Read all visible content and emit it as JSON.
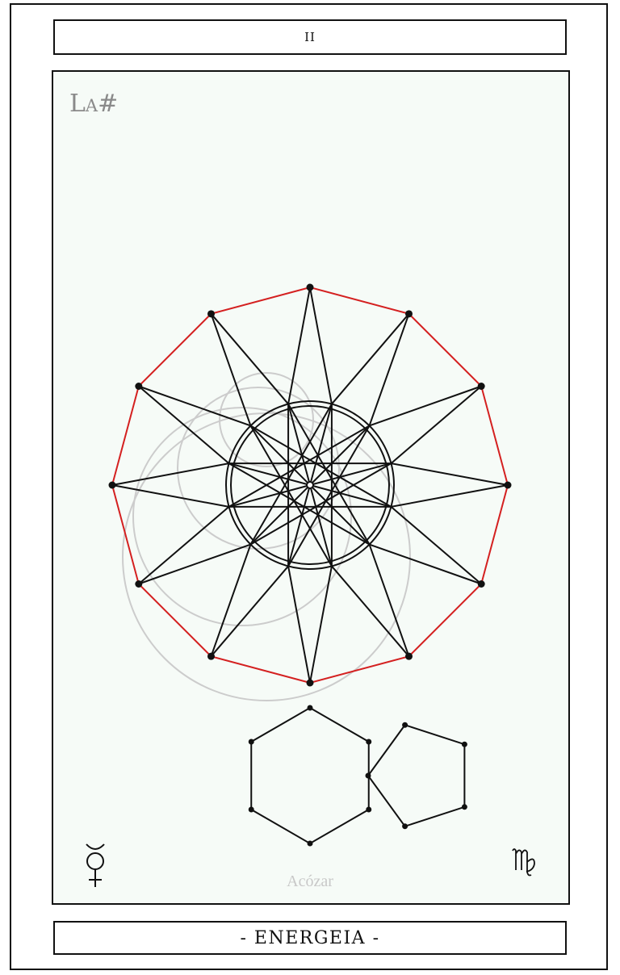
{
  "card": {
    "number": "II",
    "note": "La#",
    "note_main": "L",
    "note_small": "A",
    "note_accidental": "#",
    "artist": "Acózar",
    "title": "- ENERGEIA -"
  },
  "symbols": {
    "left_icon": "mercury-icon",
    "right_icon": "virgo-icon"
  },
  "colors": {
    "frame": "#111111",
    "panel": "#f6fbf7",
    "polygon_outline": "#d42020",
    "star_lines": "#111111",
    "construction_circles": "#cccccc",
    "label_gray": "#8a8a8a",
    "artist_gray": "#c8c8c8"
  }
}
